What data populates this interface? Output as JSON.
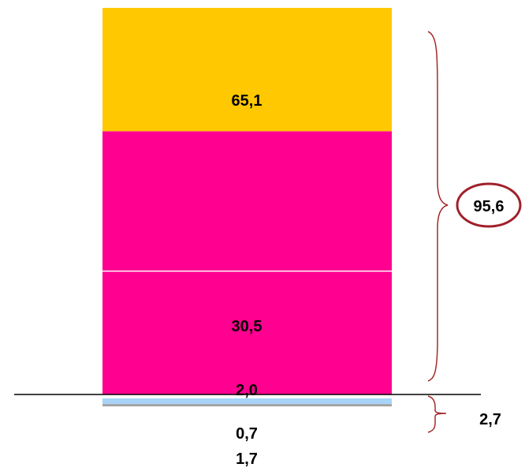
{
  "chart_data": {
    "type": "bar",
    "stacked": true,
    "categories": [
      ""
    ],
    "series": [
      {
        "values": [
          65.1
        ],
        "label": "65,1",
        "color": "#FF0090"
      },
      {
        "values": [
          30.5
        ],
        "label": "30,5",
        "color": "#FFC800"
      },
      {
        "values": [
          2.0
        ],
        "label": "2,0",
        "color": "#A8D4F8"
      },
      {
        "values": [
          0.7
        ],
        "label": "0,7",
        "color": "#A0A0A0"
      },
      {
        "values": [
          1.7
        ],
        "label": "1,7",
        "color": "#ffffff"
      }
    ],
    "above_axis": [
      0,
      1
    ],
    "below_axis": [
      2,
      3,
      4
    ],
    "annotations": {
      "upper_total": "95,6",
      "lower_total": "2,7"
    },
    "colors": {
      "brace": "#A52A2A",
      "circle": "#A0202A",
      "axis": "#000000"
    },
    "grid": false,
    "legend": "none",
    "title": "",
    "xlabel": "",
    "ylabel": ""
  }
}
